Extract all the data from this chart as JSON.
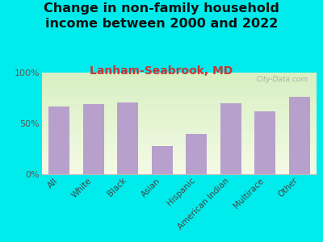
{
  "title": "Change in non-family household\nincome between 2000 and 2022",
  "subtitle": "Lanham-Seabrook, MD",
  "categories": [
    "All",
    "White",
    "Black",
    "Asian",
    "Hispanic",
    "American Indian",
    "Multirace",
    "Other"
  ],
  "values": [
    67,
    69,
    71,
    28,
    40,
    70,
    62,
    76
  ],
  "bar_color": "#b8a0cc",
  "background_outer": "#00ecec",
  "title_fontsize": 11.5,
  "subtitle_fontsize": 10,
  "subtitle_color": "#cc3333",
  "title_color": "#111111",
  "yticks": [
    0,
    50,
    100
  ],
  "ytick_labels": [
    "0%",
    "50%",
    "100%"
  ],
  "ylim": [
    0,
    100
  ],
  "watermark": "City-Data.com"
}
